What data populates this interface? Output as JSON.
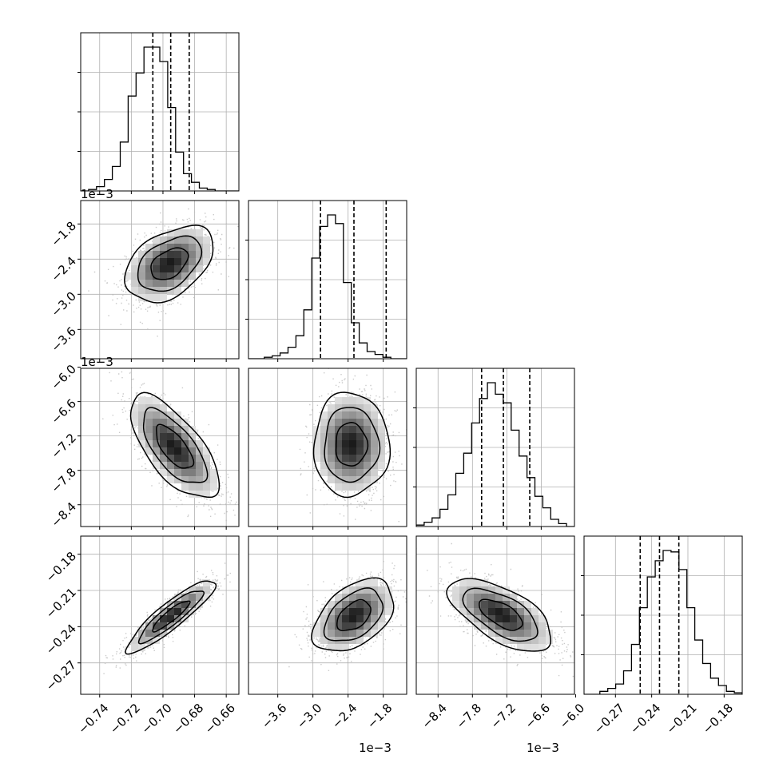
{
  "chart_data": {
    "type": "corner",
    "n_params": 4,
    "grid": true,
    "params": [
      {
        "range": [
          -0.752,
          -0.652
        ],
        "ticks": [
          -0.74,
          -0.72,
          -0.7,
          -0.68,
          -0.66
        ],
        "tick_labels": [
          "−0.74",
          "−0.72",
          "−0.70",
          "−0.68",
          "−0.66"
        ],
        "offset_label": "",
        "quantiles": [
          -0.7064,
          -0.6951,
          -0.6834
        ],
        "hist": [
          0,
          1,
          3,
          8,
          17,
          34,
          66,
          82,
          100,
          100,
          90,
          58,
          27,
          12,
          6,
          2,
          1,
          0,
          0,
          0
        ]
      },
      {
        "range": [
          -4.1,
          -1.4
        ],
        "ticks": [
          -3.6,
          -3.0,
          -2.4,
          -1.8
        ],
        "tick_labels": [
          "−3.6",
          "−3.0",
          "−2.4",
          "−1.8"
        ],
        "offset_label": "1e−3",
        "quantiles": [
          -2.87,
          -2.3,
          -1.75
        ],
        "hist": [
          0,
          0,
          1,
          2,
          4,
          8,
          16,
          34,
          70,
          92,
          100,
          94,
          53,
          25,
          11,
          5,
          3,
          1,
          0,
          0
        ]
      },
      {
        "range": [
          -8.78,
          -6.02
        ],
        "ticks": [
          -8.4,
          -7.8,
          -7.2,
          -6.6,
          -6.0
        ],
        "tick_labels": [
          "−8.4",
          "−7.8",
          "−7.2",
          "−6.6",
          "−6.0"
        ],
        "offset_label": "1e−3",
        "quantiles": [
          -7.64,
          -7.26,
          -6.8
        ],
        "hist": [
          1,
          3,
          6,
          12,
          22,
          37,
          51,
          72,
          89,
          100,
          92,
          86,
          67,
          49,
          34,
          21,
          13,
          5,
          2,
          0
        ]
      },
      {
        "range": [
          -0.296,
          -0.165
        ],
        "ticks": [
          -0.27,
          -0.24,
          -0.21,
          -0.18
        ],
        "tick_labels": [
          "−0.27",
          "−0.24",
          "−0.21",
          "−0.18"
        ],
        "offset_label": "",
        "quantiles": [
          -0.2495,
          -0.2335,
          -0.2175
        ],
        "hist": [
          0,
          0,
          2,
          4,
          7,
          16,
          34,
          59,
          80,
          91,
          98,
          97,
          85,
          59,
          37,
          21,
          11,
          6,
          2,
          1
        ]
      }
    ],
    "pairs": [
      {
        "row": 1,
        "col": 0,
        "center": [
          -0.696,
          -2.48
        ],
        "sigma": [
          0.013,
          0.3
        ],
        "corr": 0.42
      },
      {
        "row": 2,
        "col": 0,
        "center": [
          -0.693,
          -7.4
        ],
        "sigma": [
          0.013,
          0.42
        ],
        "corr": -0.68
      },
      {
        "row": 2,
        "col": 1,
        "center": [
          -2.35,
          -7.35
        ],
        "sigma": [
          0.3,
          0.42
        ],
        "corr": 0.0
      },
      {
        "row": 3,
        "col": 0,
        "center": [
          -0.695,
          -0.231
        ],
        "sigma": [
          0.013,
          0.014
        ],
        "corr": 0.9
      },
      {
        "row": 3,
        "col": 1,
        "center": [
          -2.3,
          -0.231
        ],
        "sigma": [
          0.32,
          0.014
        ],
        "corr": 0.45
      },
      {
        "row": 3,
        "col": 2,
        "center": [
          -7.3,
          -0.23
        ],
        "sigma": [
          0.42,
          0.014
        ],
        "corr": -0.62
      }
    ],
    "colors": {
      "line": "#000000",
      "scatter": "#bdbdbd",
      "grid": "#b0b0b0"
    }
  }
}
